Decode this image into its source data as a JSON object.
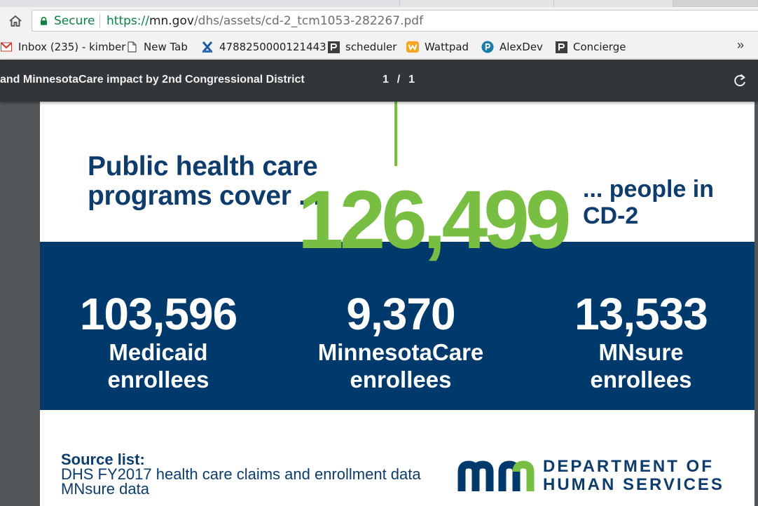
{
  "browser": {
    "secure_label": "Secure",
    "url": {
      "protocol": "https://",
      "host": "mn.gov",
      "path": "/dhs/assets/cd-2_tcm1053-282267.pdf"
    },
    "bookmarks": [
      {
        "label": "Inbox (235) - kimber",
        "icon": "gmail-icon"
      },
      {
        "label": "New Tab",
        "icon": "page-icon"
      },
      {
        "label": "4788250000121443",
        "icon": "concur-icon"
      },
      {
        "label": "scheduler",
        "icon": "p-icon"
      },
      {
        "label": "Wattpad",
        "icon": "wattpad-icon"
      },
      {
        "label": "AlexDev",
        "icon": "pipeline-icon"
      },
      {
        "label": "Concierge",
        "icon": "p-icon"
      }
    ],
    "more_bookmarks": "»"
  },
  "pdf_viewer": {
    "title": "and MinnesotaCare impact by 2nd Congressional District",
    "page_indicator": "1  /  1"
  },
  "page": {
    "headline": [
      "Public health care",
      "programs cover ..."
    ],
    "big_number": "126,499",
    "people_text": [
      "... people in",
      "CD-2"
    ],
    "stats": [
      {
        "value": "103,596",
        "label_line1": "Medicaid",
        "label_line2": "enrollees"
      },
      {
        "value": "9,370",
        "label_line1": "MinnesotaCare",
        "label_line2": "enrollees"
      },
      {
        "value": "13,533",
        "label_line1": "MNsure",
        "label_line2": "enrollees"
      }
    ],
    "source": {
      "heading": "Source list:",
      "lines": [
        "DHS FY2017 health care claims and enrollment data",
        "MNsure data"
      ]
    },
    "dhs": {
      "line1": "DEPARTMENT OF",
      "line2": "HUMAN SERVICES"
    }
  },
  "colors": {
    "navy": "#003a6c",
    "text_navy": "#0e3c6c",
    "green": "#78be43",
    "pdf_toolbar": "#323639",
    "viewer_background": "#525659"
  }
}
